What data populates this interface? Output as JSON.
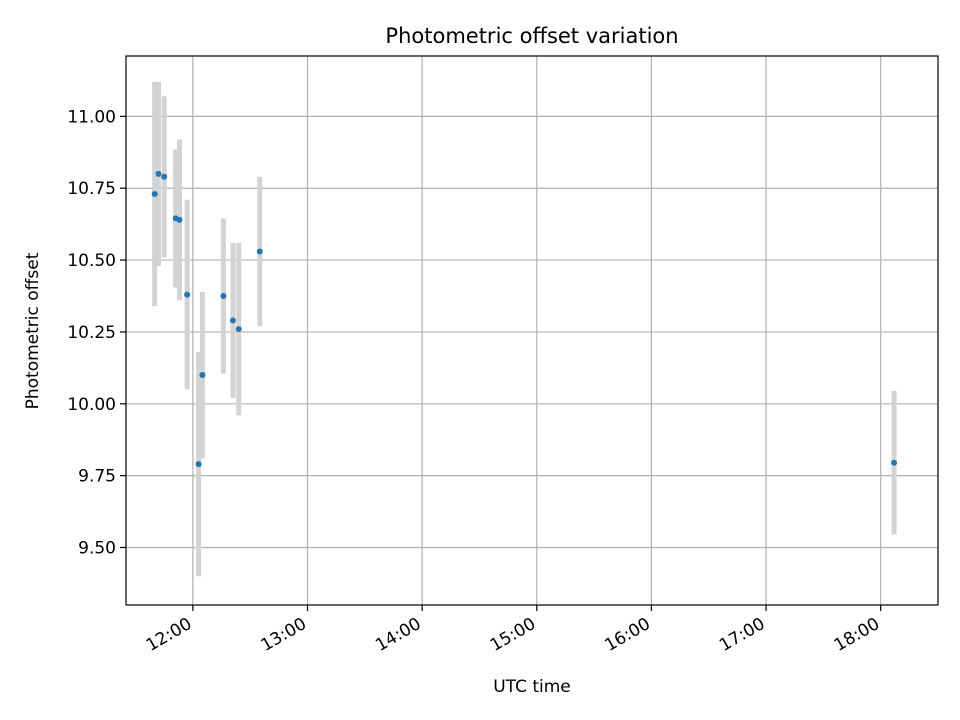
{
  "chart_data": {
    "type": "scatter",
    "title": "Photometric offset variation",
    "xlabel": "UTC time",
    "ylabel": "Photometric offset",
    "xlim": [
      "11:25",
      "18:30"
    ],
    "ylim": [
      9.3,
      11.21
    ],
    "grid": true,
    "x_ticks": [
      "12:00",
      "13:00",
      "14:00",
      "15:00",
      "16:00",
      "17:00",
      "18:00"
    ],
    "y_ticks": [
      "9.50",
      "9.75",
      "10.00",
      "10.25",
      "10.50",
      "10.75",
      "11.00"
    ],
    "y_tick_values": [
      9.5,
      9.75,
      10.0,
      10.25,
      10.5,
      10.75,
      11.0
    ],
    "colors": {
      "point": "#1f77b4",
      "errorbar": "#d3d3d3",
      "grid": "#b0b0b0"
    },
    "points": [
      {
        "x": "11:40",
        "y": 10.73,
        "err": 0.39
      },
      {
        "x": "11:42",
        "y": 10.8,
        "err": 0.32
      },
      {
        "x": "11:45",
        "y": 10.79,
        "err": 0.28
      },
      {
        "x": "11:51",
        "y": 10.645,
        "err": 0.24
      },
      {
        "x": "11:53",
        "y": 10.64,
        "err": 0.28
      },
      {
        "x": "11:57",
        "y": 10.38,
        "err": 0.33
      },
      {
        "x": "12:03",
        "y": 9.79,
        "err": 0.39
      },
      {
        "x": "12:05",
        "y": 10.1,
        "err": 0.29
      },
      {
        "x": "12:16",
        "y": 10.375,
        "err": 0.27
      },
      {
        "x": "12:21",
        "y": 10.29,
        "err": 0.27
      },
      {
        "x": "12:24",
        "y": 10.26,
        "err": 0.3
      },
      {
        "x": "12:35",
        "y": 10.53,
        "err": 0.26
      },
      {
        "x": "18:07",
        "y": 9.795,
        "err": 0.25
      }
    ]
  }
}
